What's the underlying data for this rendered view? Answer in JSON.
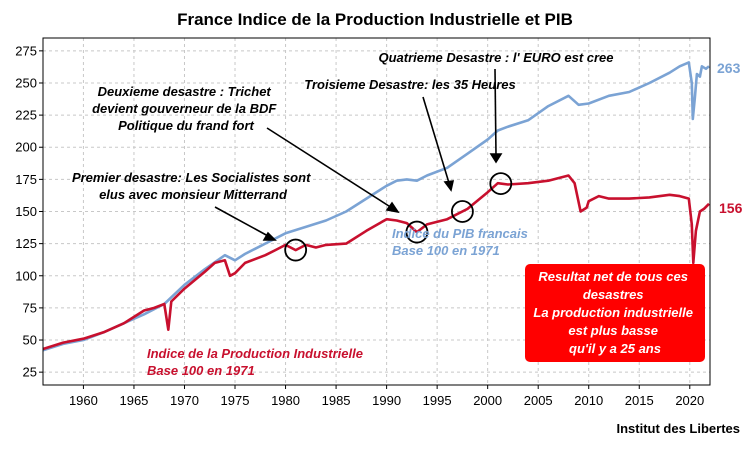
{
  "chart_data": {
    "type": "line",
    "title": "France Indice de la Production Industrielle et PIB",
    "xlabel": "",
    "ylabel": "",
    "xlim": [
      1956,
      2022
    ],
    "ylim": [
      15,
      285
    ],
    "grid": true,
    "x_ticks": [
      "1960",
      "1965",
      "1970",
      "1975",
      "1980",
      "1985",
      "1990",
      "1995",
      "2000",
      "2005",
      "2010",
      "2015",
      "2020"
    ],
    "y_ticks": [
      "25",
      "50",
      "75",
      "100",
      "125",
      "150",
      "175",
      "200",
      "225",
      "250",
      "275"
    ],
    "series": [
      {
        "name": "Indice du PIB francais Base 100 en 1971",
        "color": "#7ba3d4",
        "end_label": "263",
        "points": [
          [
            1956,
            42
          ],
          [
            1958,
            47
          ],
          [
            1960,
            50
          ],
          [
            1962,
            56
          ],
          [
            1964,
            63
          ],
          [
            1966,
            70
          ],
          [
            1968,
            78
          ],
          [
            1970,
            93
          ],
          [
            1972,
            105
          ],
          [
            1974,
            116
          ],
          [
            1975,
            112
          ],
          [
            1976,
            117
          ],
          [
            1978,
            125
          ],
          [
            1980,
            133
          ],
          [
            1982,
            138
          ],
          [
            1984,
            143
          ],
          [
            1986,
            150
          ],
          [
            1988,
            160
          ],
          [
            1990,
            170
          ],
          [
            1991,
            174
          ],
          [
            1992,
            175
          ],
          [
            1993,
            174
          ],
          [
            1994,
            178
          ],
          [
            1996,
            184
          ],
          [
            1998,
            195
          ],
          [
            2000,
            206
          ],
          [
            2001,
            213
          ],
          [
            2002,
            216
          ],
          [
            2004,
            221
          ],
          [
            2006,
            232
          ],
          [
            2008,
            240
          ],
          [
            2009,
            233
          ],
          [
            2010,
            234
          ],
          [
            2012,
            240
          ],
          [
            2014,
            243
          ],
          [
            2016,
            250
          ],
          [
            2018,
            258
          ],
          [
            2019,
            263
          ],
          [
            2019.9,
            266
          ],
          [
            2020.2,
            250
          ],
          [
            2020.3,
            222
          ],
          [
            2020.5,
            238
          ],
          [
            2020.7,
            257
          ],
          [
            2021,
            255
          ],
          [
            2021.2,
            263
          ],
          [
            2021.6,
            261
          ],
          [
            2021.9,
            263
          ]
        ]
      },
      {
        "name": "Indice de la Production Industrielle Base 100 en 1971",
        "color": "#c8102e",
        "end_label": "156",
        "points": [
          [
            1956,
            43
          ],
          [
            1958,
            48
          ],
          [
            1960,
            51
          ],
          [
            1962,
            56
          ],
          [
            1964,
            63
          ],
          [
            1965,
            68
          ],
          [
            1966,
            73
          ],
          [
            1967,
            75
          ],
          [
            1968,
            78
          ],
          [
            1968.4,
            58
          ],
          [
            1968.7,
            80
          ],
          [
            1970,
            90
          ],
          [
            1972,
            103
          ],
          [
            1973,
            110
          ],
          [
            1974,
            112
          ],
          [
            1974.5,
            100
          ],
          [
            1975,
            102
          ],
          [
            1976,
            110
          ],
          [
            1978,
            116
          ],
          [
            1979,
            120
          ],
          [
            1980,
            124
          ],
          [
            1981,
            120
          ],
          [
            1982,
            124
          ],
          [
            1983,
            122
          ],
          [
            1984,
            124
          ],
          [
            1986,
            125
          ],
          [
            1988,
            135
          ],
          [
            1990,
            144
          ],
          [
            1991,
            143
          ],
          [
            1992,
            141
          ],
          [
            1993,
            134
          ],
          [
            1994,
            140
          ],
          [
            1996,
            144
          ],
          [
            1998,
            152
          ],
          [
            2000,
            165
          ],
          [
            2001,
            172
          ],
          [
            2002,
            171
          ],
          [
            2004,
            172
          ],
          [
            2006,
            174
          ],
          [
            2008,
            178
          ],
          [
            2008.6,
            172
          ],
          [
            2009.2,
            150
          ],
          [
            2009.8,
            153
          ],
          [
            2010,
            158
          ],
          [
            2011,
            162
          ],
          [
            2012,
            160
          ],
          [
            2014,
            160
          ],
          [
            2016,
            161
          ],
          [
            2018,
            163
          ],
          [
            2019,
            162
          ],
          [
            2019.9,
            160
          ],
          [
            2020.2,
            140
          ],
          [
            2020.35,
            110
          ],
          [
            2020.6,
            135
          ],
          [
            2021,
            150
          ],
          [
            2021.4,
            152
          ],
          [
            2021.9,
            156
          ]
        ]
      }
    ],
    "annotations": [
      {
        "lines": [
          "Premier desastre: Les Socialistes sont",
          "elus avec monsieur Mitterrand"
        ]
      },
      {
        "lines": [
          "Deuxieme desastre : Trichet",
          "devient gouverneur de la BDF",
          "Politique du frand fort"
        ]
      },
      {
        "lines": [
          "Troisieme Desastre: les 35 Heures"
        ]
      },
      {
        "lines": [
          "Quatrieme Desastre : l' EURO est cree"
        ]
      }
    ],
    "highlighted_years": [
      1981,
      1993,
      1997.5,
      2001.3
    ],
    "series_labels": {
      "ipi": [
        "Indice de la Production Industrielle",
        "Base 100 en 1971"
      ],
      "pib": [
        "Indice du PIB francais",
        "Base 100 en 1971"
      ]
    },
    "result_box": {
      "color": "#ff0000",
      "lines": [
        "Resultat net de tous ces",
        "desastres",
        "La production industrielle",
        "est plus basse",
        "qu'il y a 25 ans"
      ]
    },
    "credit": "Institut des Libertes"
  }
}
